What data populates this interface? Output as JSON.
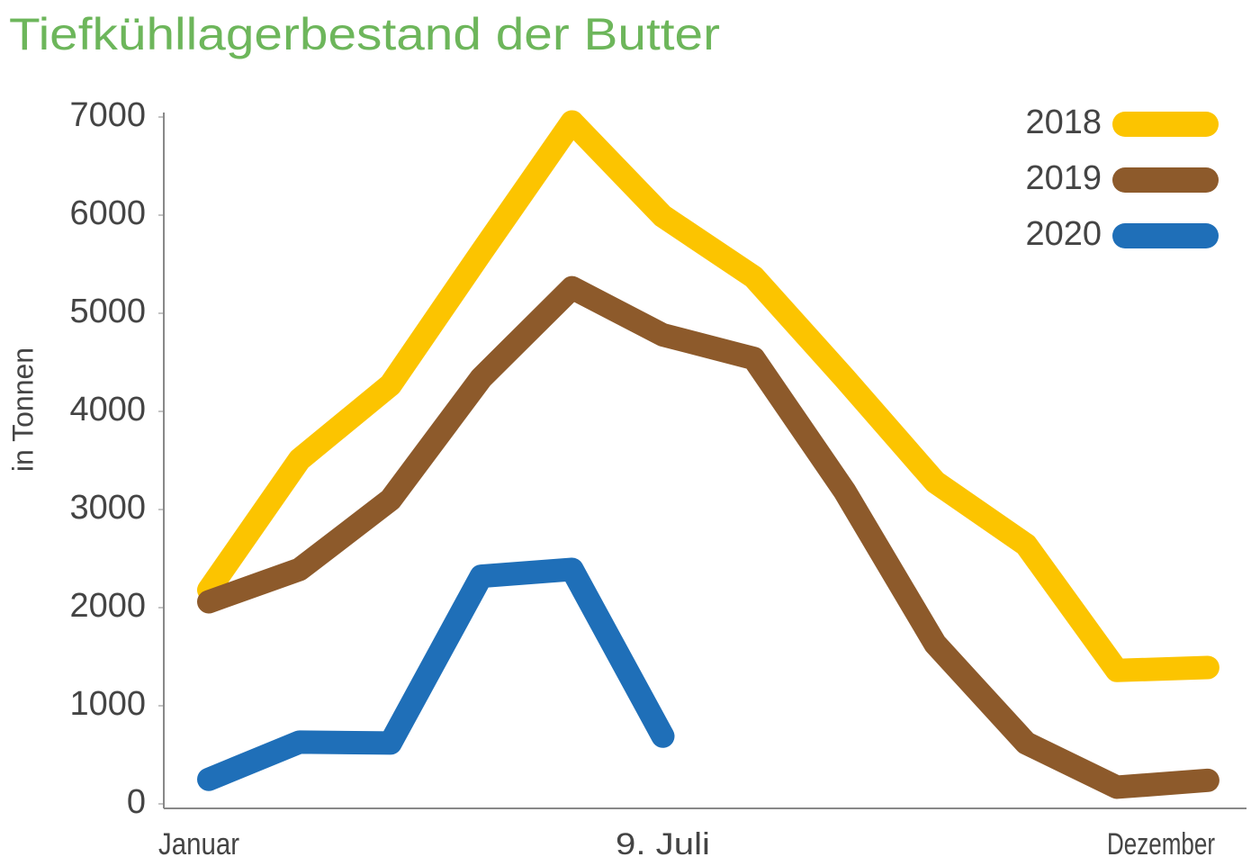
{
  "chart_data": {
    "type": "line",
    "title": "Tiefkühllagerbestand der Butter",
    "y_label": "in Tonnen",
    "categories": [
      "Januar",
      null,
      null,
      null,
      null,
      "9. Juli",
      null,
      null,
      null,
      null,
      null,
      "Dezember"
    ],
    "series": [
      {
        "name": "2018",
        "color": "#fcc400",
        "values": [
          2180,
          3510,
          4270,
          5620,
          6950,
          5990,
          5370,
          4340,
          3280,
          2640,
          1360,
          1390
        ]
      },
      {
        "name": "2019",
        "color": "#8d5a2b",
        "values": [
          2060,
          2390,
          3100,
          4340,
          5260,
          4780,
          4540,
          3190,
          1630,
          620,
          170,
          240
        ]
      },
      {
        "name": "2020",
        "color": "#1f6fb8",
        "values": [
          250,
          630,
          620,
          2320,
          2390,
          690,
          null,
          null,
          null,
          null,
          null,
          null
        ]
      }
    ],
    "ylim": [
      0,
      7000
    ],
    "yticks": [
      0,
      1000,
      2000,
      3000,
      4000,
      5000,
      6000,
      7000
    ],
    "grid": false,
    "legend": "top-right"
  }
}
